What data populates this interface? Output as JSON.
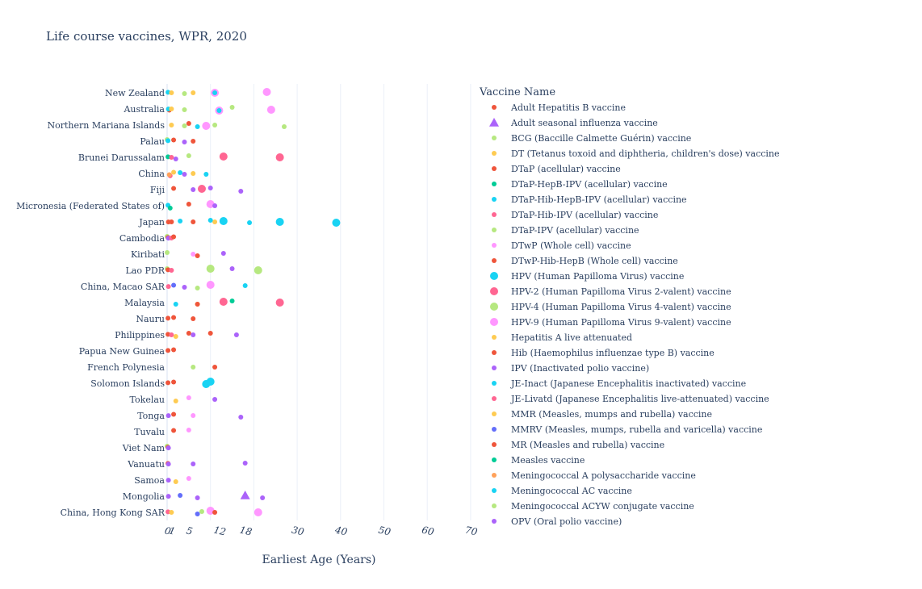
{
  "chart_data": {
    "type": "scatter",
    "title": "Life course vaccines, WPR, 2020",
    "xlabel": "Earliest Age (Years)",
    "x_ticks": [
      0,
      1,
      5,
      12,
      18,
      30,
      40,
      50,
      60,
      70
    ],
    "x_gridlines": [
      0,
      10,
      20,
      30,
      40,
      50,
      60,
      70
    ],
    "xlim": [
      0,
      70
    ],
    "categories": [
      "New Zealand",
      "Australia",
      "Northern Mariana Islands",
      "Palau",
      "Brunei Darussalam",
      "China",
      "Fiji",
      "Micronesia (Federated States of)",
      "Japan",
      "Cambodia",
      "Kiribati",
      "Lao PDR",
      "China, Macao SAR",
      "Malaysia",
      "Nauru",
      "Philippines",
      "Papua New Guinea",
      "French Polynesia",
      "Solomon Islands",
      "Tokelau",
      "Tonga",
      "Tuvalu",
      "Viet Nam",
      "Vanuatu",
      "Samoa",
      "Mongolia",
      "China, Hong Kong SAR"
    ],
    "legend_title": "Vaccine Name",
    "legend_position": "right",
    "series": [
      {
        "name": "Adult Hepatitis B vaccine",
        "color": "#EF553B",
        "symbol": "circle",
        "size": "small",
        "points": []
      },
      {
        "name": "Adult seasonal influenza vaccine",
        "color": "#AB63FA",
        "symbol": "triangle",
        "size": "large",
        "points": [
          {
            "x": 18,
            "y": "Mongolia"
          }
        ]
      },
      {
        "name": "BCG (Baccille Calmette Guérin) vaccine",
        "color": "#B6E880",
        "symbol": "circle",
        "size": "small",
        "points": [
          {
            "x": 0,
            "y": "Palau"
          },
          {
            "x": 0,
            "y": "Cambodia"
          },
          {
            "x": 0,
            "y": "Lao PDR"
          },
          {
            "x": 0,
            "y": "Viet Nam"
          },
          {
            "x": 0,
            "y": "Kiribati"
          }
        ]
      },
      {
        "name": "DT (Tetanus toxoid and diphtheria, children's dose) vaccine",
        "color": "#FECB52",
        "symbol": "circle",
        "size": "small",
        "points": [
          {
            "x": 6,
            "y": "New Zealand"
          },
          {
            "x": 6,
            "y": "China"
          },
          {
            "x": 11,
            "y": "Japan"
          }
        ]
      },
      {
        "name": "DTaP (acellular) vaccine",
        "color": "#EF553B",
        "symbol": "circle",
        "size": "small",
        "points": [
          {
            "x": 5,
            "y": "Northern Mariana Islands"
          },
          {
            "x": 0.5,
            "y": "Australia"
          },
          {
            "x": 0.3,
            "y": "Japan"
          }
        ]
      },
      {
        "name": "DTaP-HepB-IPV (acellular) vaccine",
        "color": "#00CC96",
        "symbol": "circle",
        "size": "small",
        "points": [
          {
            "x": 0.2,
            "y": "Brunei Darussalam"
          }
        ]
      },
      {
        "name": "DTaP-Hib-HepB-IPV (acellular) vaccine",
        "color": "#19D3F3",
        "symbol": "circle",
        "size": "small",
        "points": [
          {
            "x": 0.2,
            "y": "New Zealand"
          },
          {
            "x": 0.3,
            "y": "Australia"
          },
          {
            "x": 0.2,
            "y": "Micronesia (Federated States of)"
          },
          {
            "x": 0.2,
            "y": "Palau"
          }
        ]
      },
      {
        "name": "DTaP-Hib-IPV (acellular) vaccine",
        "color": "#FF6692",
        "symbol": "circle",
        "size": "small",
        "points": [
          {
            "x": 0.2,
            "y": "China, Hong Kong SAR"
          },
          {
            "x": 0.3,
            "y": "China, Macao SAR"
          }
        ]
      },
      {
        "name": "DTaP-IPV (acellular) vaccine",
        "color": "#B6E880",
        "symbol": "circle",
        "size": "small",
        "points": [
          {
            "x": 4,
            "y": "New Zealand"
          },
          {
            "x": 4,
            "y": "Australia"
          },
          {
            "x": 5,
            "y": "Brunei Darussalam"
          },
          {
            "x": 4,
            "y": "Northern Mariana Islands"
          }
        ]
      },
      {
        "name": "DTwP (Whole cell) vaccine",
        "color": "#FF97FF",
        "symbol": "circle",
        "size": "small",
        "points": [
          {
            "x": 6,
            "y": "Kiribati"
          },
          {
            "x": 5,
            "y": "Tokelau"
          },
          {
            "x": 6,
            "y": "Tonga"
          },
          {
            "x": 5,
            "y": "Tuvalu"
          },
          {
            "x": 5,
            "y": "Samoa"
          }
        ]
      },
      {
        "name": "DTwP-Hib-HepB (Whole cell) vaccine",
        "color": "#EF553B",
        "symbol": "circle",
        "size": "small",
        "points": [
          {
            "x": 0.2,
            "y": "Cambodia"
          },
          {
            "x": 0.2,
            "y": "Lao PDR"
          },
          {
            "x": 0.2,
            "y": "Philippines"
          },
          {
            "x": 0.2,
            "y": "Papua New Guinea"
          },
          {
            "x": 0.2,
            "y": "Solomon Islands"
          },
          {
            "x": 0.2,
            "y": "Vanuatu"
          },
          {
            "x": 0.2,
            "y": "Viet Nam"
          },
          {
            "x": 0.2,
            "y": "Nauru"
          }
        ]
      },
      {
        "name": "HPV (Human Papilloma Virus) vaccine",
        "color": "#19D3F3",
        "symbol": "circle",
        "size": "large",
        "points": [
          {
            "x": 13,
            "y": "Japan"
          },
          {
            "x": 26,
            "y": "Japan"
          },
          {
            "x": 39,
            "y": "Japan"
          },
          {
            "x": 9,
            "y": "Solomon Islands"
          },
          {
            "x": 10,
            "y": "Solomon Islands"
          }
        ]
      },
      {
        "name": "HPV-2 (Human Papilloma Virus 2-valent) vaccine",
        "color": "#FF6692",
        "symbol": "circle",
        "size": "large",
        "points": [
          {
            "x": 13,
            "y": "Brunei Darussalam"
          },
          {
            "x": 26,
            "y": "Brunei Darussalam"
          },
          {
            "x": 13,
            "y": "Malaysia"
          },
          {
            "x": 26,
            "y": "Malaysia"
          },
          {
            "x": 8,
            "y": "Fiji"
          }
        ]
      },
      {
        "name": "HPV-4 (Human Papilloma Virus 4-valent) vaccine",
        "color": "#B6E880",
        "symbol": "circle",
        "size": "large",
        "points": [
          {
            "x": 10,
            "y": "Lao PDR"
          },
          {
            "x": 21,
            "y": "Lao PDR"
          }
        ]
      },
      {
        "name": "HPV-9 (Human Papilloma Virus 9-valent) vaccine",
        "color": "#FF97FF",
        "symbol": "circle",
        "size": "large",
        "points": [
          {
            "x": 11,
            "y": "New Zealand"
          },
          {
            "x": 23,
            "y": "New Zealand"
          },
          {
            "x": 12,
            "y": "Australia"
          },
          {
            "x": 24,
            "y": "Australia"
          },
          {
            "x": 9,
            "y": "Northern Mariana Islands"
          },
          {
            "x": 10,
            "y": "Micronesia (Federated States of)"
          },
          {
            "x": 10,
            "y": "China, Macao SAR"
          },
          {
            "x": 10,
            "y": "China, Hong Kong SAR"
          },
          {
            "x": 21,
            "y": "China, Hong Kong SAR"
          }
        ]
      },
      {
        "name": "Hepatitis A live attenuated",
        "color": "#FECB52",
        "symbol": "circle",
        "size": "small",
        "points": [
          {
            "x": 1.5,
            "y": "China"
          }
        ]
      },
      {
        "name": "Hib (Haemophilus influenzae type B) vaccine",
        "color": "#EF553B",
        "symbol": "circle",
        "size": "small",
        "points": [
          {
            "x": 1.5,
            "y": "Palau"
          },
          {
            "x": 1.5,
            "y": "Fiji"
          },
          {
            "x": 1.5,
            "y": "Nauru"
          }
        ]
      },
      {
        "name": "IPV (Inactivated polio vaccine)",
        "color": "#AB63FA",
        "symbol": "circle",
        "size": "small",
        "points": [
          {
            "x": 0.3,
            "y": "Cambodia"
          },
          {
            "x": 0.3,
            "y": "Tonga"
          },
          {
            "x": 0.3,
            "y": "Samoa"
          },
          {
            "x": 0.3,
            "y": "Mongolia"
          },
          {
            "x": 0.3,
            "y": "Vanuatu"
          },
          {
            "x": 0.3,
            "y": "Viet Nam"
          }
        ]
      },
      {
        "name": "JE-Inact (Japanese Encephalitis inactivated) vaccine",
        "color": "#19D3F3",
        "symbol": "circle",
        "size": "small",
        "points": [
          {
            "x": 3,
            "y": "Japan"
          },
          {
            "x": 10,
            "y": "Japan"
          },
          {
            "x": 19,
            "y": "Japan"
          },
          {
            "x": 7,
            "y": "Northern Mariana Islands"
          },
          {
            "x": 9,
            "y": "China"
          },
          {
            "x": 2,
            "y": "Malaysia"
          },
          {
            "x": 18,
            "y": "China, Macao SAR"
          }
        ]
      },
      {
        "name": "JE-Livatd (Japanese Encephalitis live-attenuated) vaccine",
        "color": "#FF6692",
        "symbol": "circle",
        "size": "small",
        "points": [
          {
            "x": 0.7,
            "y": "China"
          },
          {
            "x": 1,
            "y": "Lao PDR"
          },
          {
            "x": 1,
            "y": "Philippines"
          },
          {
            "x": 1,
            "y": "Cambodia"
          },
          {
            "x": 1,
            "y": "Brunei Darussalam"
          }
        ]
      },
      {
        "name": "MMR (Measles, mumps and rubella) vaccine",
        "color": "#FECB52",
        "symbol": "circle",
        "size": "small",
        "points": [
          {
            "x": 1,
            "y": "New Zealand"
          },
          {
            "x": 1,
            "y": "Australia"
          },
          {
            "x": 1,
            "y": "Northern Mariana Islands"
          },
          {
            "x": 1,
            "y": "China, Hong Kong SAR"
          },
          {
            "x": 2,
            "y": "Philippines"
          },
          {
            "x": 2,
            "y": "Samoa"
          },
          {
            "x": 2,
            "y": "Tokelau"
          },
          {
            "x": 7,
            "y": "Malaysia"
          }
        ]
      },
      {
        "name": "MMRV (Measles, mumps, rubella and varicella) vaccine",
        "color": "#636EFA",
        "symbol": "circle",
        "size": "small",
        "points": [
          {
            "x": 1.5,
            "y": "China, Macao SAR"
          },
          {
            "x": 3,
            "y": "Mongolia"
          },
          {
            "x": 7,
            "y": "China, Hong Kong SAR"
          }
        ]
      },
      {
        "name": "MR (Measles and rubella) vaccine",
        "color": "#EF553B",
        "symbol": "circle",
        "size": "small",
        "points": [
          {
            "x": 1,
            "y": "Japan"
          },
          {
            "x": 6,
            "y": "Japan"
          },
          {
            "x": 1.5,
            "y": "Cambodia"
          },
          {
            "x": 1.5,
            "y": "Papua New Guinea"
          },
          {
            "x": 1.5,
            "y": "Solomon Islands"
          },
          {
            "x": 1.5,
            "y": "Tonga"
          },
          {
            "x": 1.5,
            "y": "Tuvalu"
          },
          {
            "x": 7,
            "y": "Kiribati"
          },
          {
            "x": 6,
            "y": "Palau"
          },
          {
            "x": 5,
            "y": "Micronesia (Federated States of)"
          },
          {
            "x": 7,
            "y": "Malaysia"
          },
          {
            "x": 6,
            "y": "Nauru"
          },
          {
            "x": 5,
            "y": "Philippines"
          },
          {
            "x": 10,
            "y": "Philippines"
          },
          {
            "x": 11,
            "y": "China, Hong Kong SAR"
          },
          {
            "x": 11,
            "y": "French Polynesia"
          }
        ]
      },
      {
        "name": "Measles vaccine",
        "color": "#00CC96",
        "symbol": "circle",
        "size": "small",
        "points": [
          {
            "x": 0.7,
            "y": "Micronesia (Federated States of)"
          },
          {
            "x": 15,
            "y": "Malaysia"
          }
        ]
      },
      {
        "name": "Meningococcal A polysaccharide vaccine",
        "color": "#FFA15A",
        "symbol": "circle",
        "size": "small",
        "points": [
          {
            "x": 0.5,
            "y": "China"
          }
        ]
      },
      {
        "name": "Meningococcal AC vaccine",
        "color": "#19D3F3",
        "symbol": "circle",
        "size": "small",
        "points": [
          {
            "x": 3,
            "y": "China"
          },
          {
            "x": 11,
            "y": "New Zealand"
          },
          {
            "x": 12,
            "y": "Australia"
          }
        ]
      },
      {
        "name": "Meningococcal ACYW conjugate vaccine",
        "color": "#B6E880",
        "symbol": "circle",
        "size": "small",
        "points": [
          {
            "x": 11,
            "y": "Northern Mariana Islands"
          },
          {
            "x": 15,
            "y": "Australia"
          },
          {
            "x": 27,
            "y": "Northern Mariana Islands"
          },
          {
            "x": 6,
            "y": "French Polynesia"
          },
          {
            "x": 7,
            "y": "China, Macao SAR"
          },
          {
            "x": 8,
            "y": "China, Hong Kong SAR"
          }
        ]
      },
      {
        "name": "OPV (Oral polio vaccine)",
        "color": "#AB63FA",
        "symbol": "circle",
        "size": "small",
        "points": [
          {
            "x": 2,
            "y": "Brunei Darussalam"
          },
          {
            "x": 4,
            "y": "China"
          },
          {
            "x": 4,
            "y": "Palau"
          },
          {
            "x": 6,
            "y": "Fiji"
          },
          {
            "x": 10,
            "y": "Fiji"
          },
          {
            "x": 17,
            "y": "Fiji"
          },
          {
            "x": 11,
            "y": "Micronesia (Federated States of)"
          },
          {
            "x": 13,
            "y": "Kiribati"
          },
          {
            "x": 15,
            "y": "Lao PDR"
          },
          {
            "x": 4,
            "y": "China, Macao SAR"
          },
          {
            "x": 6,
            "y": "Philippines"
          },
          {
            "x": 16,
            "y": "Philippines"
          },
          {
            "x": 11,
            "y": "Tokelau"
          },
          {
            "x": 17,
            "y": "Tonga"
          },
          {
            "x": 6,
            "y": "Vanuatu"
          },
          {
            "x": 18,
            "y": "Vanuatu"
          },
          {
            "x": 7,
            "y": "Mongolia"
          },
          {
            "x": 22,
            "y": "Mongolia"
          }
        ]
      }
    ]
  }
}
